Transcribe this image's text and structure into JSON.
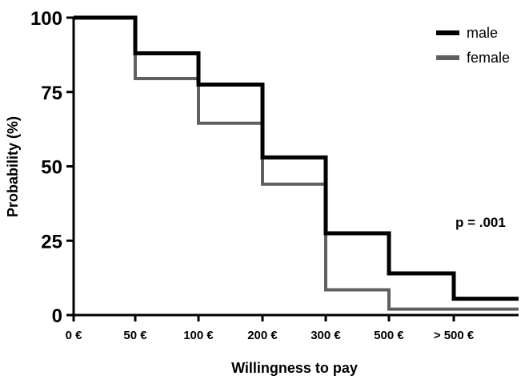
{
  "chart_data": {
    "type": "line",
    "step": true,
    "ylabel": "Probability (%)",
    "xlabel": "Willingness to pay",
    "ylim": [
      0,
      100
    ],
    "yticks": [
      0,
      25,
      50,
      75,
      100
    ],
    "categories": [
      "0 €",
      "50 €",
      "100 €",
      "200 €",
      "300 €",
      "500 €",
      "> 500 €"
    ],
    "series": [
      {
        "name": "male",
        "color": "#000000",
        "values": [
          100,
          88,
          77.5,
          53,
          27.5,
          14,
          5.5
        ]
      },
      {
        "name": "female",
        "color": "#606060",
        "values": [
          100,
          79.5,
          64.5,
          44,
          8.5,
          2,
          2
        ]
      }
    ],
    "legend_position": "top-right",
    "annotation": "p = .001",
    "grid": false
  }
}
